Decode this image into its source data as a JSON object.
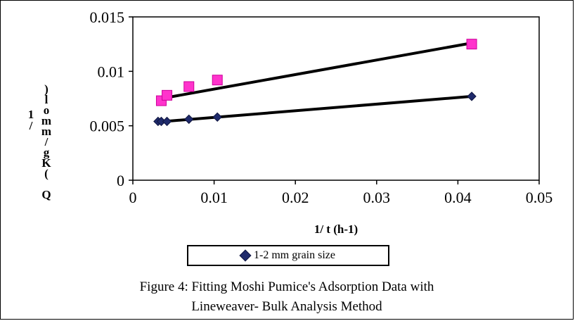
{
  "chart_data": {
    "type": "scatter",
    "title": "",
    "xlabel": "1/ t (h-1)",
    "ylabel": "1/Q (Kg/mmol)",
    "xlim": [
      0,
      0.05
    ],
    "ylim": [
      0,
      0.015
    ],
    "x_ticks": [
      "0",
      "0.01",
      "0.02",
      "0.03",
      "0.04",
      "0.05"
    ],
    "y_ticks": [
      "0",
      "0.005",
      "0.01",
      "0.015"
    ],
    "grid": false,
    "legend_position": "bottom",
    "series": [
      {
        "name": "1-2 mm grain size",
        "marker": "diamond",
        "color": "#1f2a6b",
        "points": [
          [
            0.0031,
            0.0054
          ],
          [
            0.0035,
            0.0054
          ],
          [
            0.0042,
            0.0054
          ],
          [
            0.0069,
            0.0056
          ],
          [
            0.0104,
            0.0058
          ],
          [
            0.0417,
            0.0077
          ]
        ],
        "fit_line": [
          [
            0.0031,
            0.00535
          ],
          [
            0.0417,
            0.0077
          ]
        ]
      },
      {
        "name": "",
        "marker": "square",
        "color": "#ff33cc",
        "points": [
          [
            0.0035,
            0.0073
          ],
          [
            0.0042,
            0.0078
          ],
          [
            0.0069,
            0.0086
          ],
          [
            0.0104,
            0.0092
          ],
          [
            0.0417,
            0.0125
          ]
        ],
        "fit_line": [
          [
            0.0035,
            0.0075
          ],
          [
            0.0417,
            0.0126
          ]
        ]
      }
    ]
  },
  "caption": {
    "line1": "Figure 4: Fitting Moshi Pumice's Adsorption Data with",
    "line2": "Lineweaver- Bulk Analysis Method"
  }
}
